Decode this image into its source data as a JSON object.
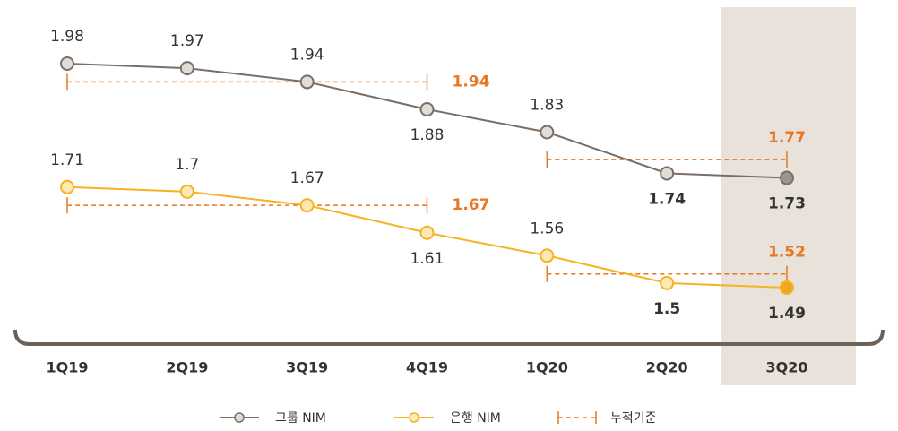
{
  "chart_data": {
    "type": "line",
    "categories": [
      "1Q19",
      "2Q19",
      "3Q19",
      "4Q19",
      "1Q20",
      "2Q20",
      "3Q20"
    ],
    "highlight": "3Q20",
    "series": [
      {
        "name": "그룹 NIM",
        "color": "#7a6e66",
        "values": [
          1.98,
          1.97,
          1.94,
          1.88,
          1.83,
          1.74,
          1.73
        ]
      },
      {
        "name": "은행 NIM",
        "color": "#f5b323",
        "values": [
          1.71,
          1.7,
          1.67,
          1.61,
          1.56,
          1.5,
          1.49
        ]
      }
    ],
    "cumulative": {
      "name": "누적기준",
      "color": "#e87722",
      "series": [
        [
          1.94,
          1.77
        ],
        [
          1.67,
          1.52
        ]
      ]
    }
  }
}
